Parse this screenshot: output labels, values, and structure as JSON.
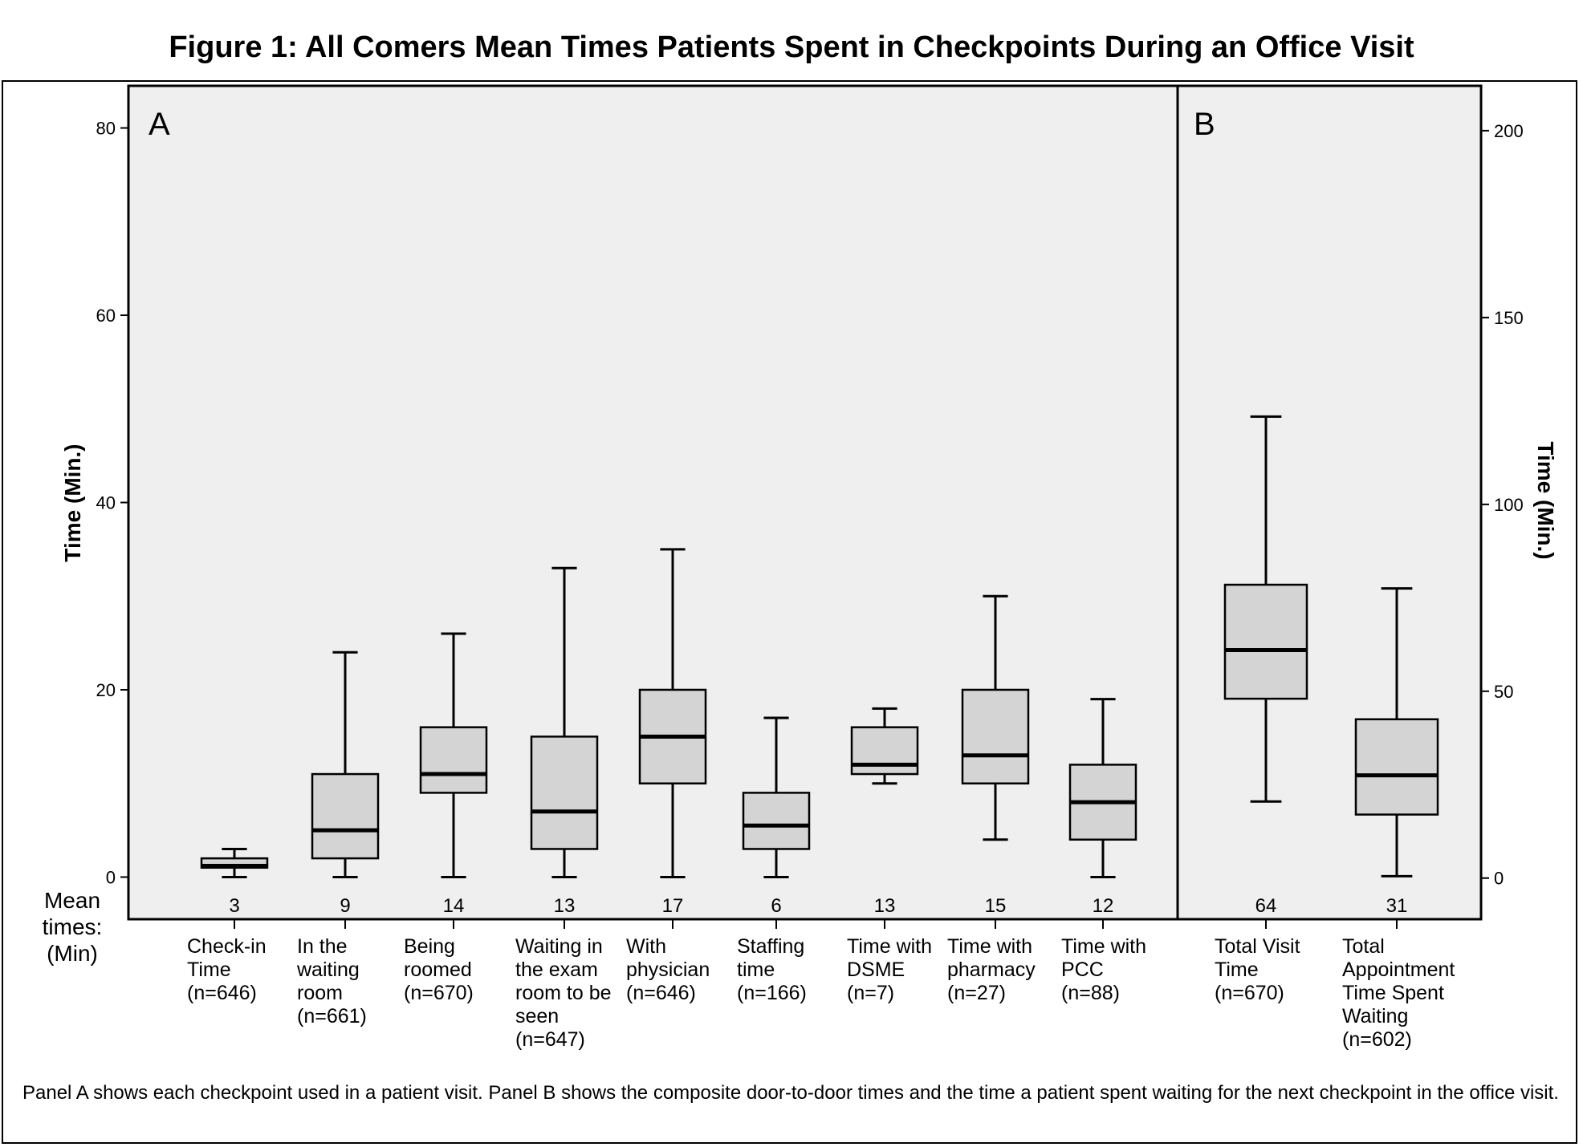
{
  "figure": {
    "title": "Figure 1: All Comers Mean Times Patients Spent in Checkpoints During an Office Visit",
    "caption": "Panel A shows each checkpoint used in a patient visit. Panel B shows the composite door-to-door times and the time a patient spent waiting for the next checkpoint in the office visit."
  },
  "mean_row_label": "Mean times: (Min)",
  "chart_data": [
    {
      "panel": "A",
      "type": "box",
      "ylabel": "Time (Min.)",
      "ylim": [
        -4.5,
        84.5
      ],
      "yticks": [
        0,
        20,
        40,
        60,
        80
      ],
      "grid": false,
      "background": "#efefef",
      "box_color": "#d4d4d4",
      "categories": [
        {
          "label": "Check-in Time",
          "n": "(n=646)",
          "min": 0,
          "q1": 1,
          "median": 1.2,
          "q3": 2,
          "max": 3,
          "mean": 3
        },
        {
          "label": "In the waiting room",
          "n": "(n=661)",
          "min": 0,
          "q1": 2,
          "median": 5,
          "q3": 11,
          "max": 24,
          "mean": 9
        },
        {
          "label": "Being roomed",
          "n": "(n=670)",
          "min": 0,
          "q1": 9,
          "median": 11,
          "q3": 16,
          "max": 26,
          "mean": 14
        },
        {
          "label": "Waiting in the exam room to be seen",
          "n": "(n=647)",
          "min": 0,
          "q1": 3,
          "median": 7,
          "q3": 15,
          "max": 33,
          "mean": 13
        },
        {
          "label": "With physician",
          "n": "(n=646)",
          "min": 0,
          "q1": 10,
          "median": 15,
          "q3": 20,
          "max": 35,
          "mean": 17
        },
        {
          "label": "Staffing time",
          "n": "(n=166)",
          "min": 0,
          "q1": 3,
          "median": 5.5,
          "q3": 9,
          "max": 17,
          "mean": 6
        },
        {
          "label": "Time with DSME",
          "n": "(n=7)",
          "min": 10,
          "q1": 11,
          "median": 12,
          "q3": 16,
          "max": 18,
          "mean": 13
        },
        {
          "label": "Time with pharmacy",
          "n": "(n=27)",
          "min": 4,
          "q1": 10,
          "median": 13,
          "q3": 20,
          "max": 30,
          "mean": 15
        },
        {
          "label": "Time with PCC",
          "n": "(n=88)",
          "min": 0,
          "q1": 4,
          "median": 8,
          "q3": 12,
          "max": 19,
          "mean": 12
        }
      ]
    },
    {
      "panel": "B",
      "type": "box",
      "ylabel": "Time (Min.)",
      "ylim": [
        -11,
        212
      ],
      "yticks": [
        0,
        50,
        100,
        150,
        200
      ],
      "grid": false,
      "background": "#efefef",
      "box_color": "#d4d4d4",
      "categories": [
        {
          "label": "Total Visit Time",
          "n": "(n=670)",
          "min": 20.5,
          "q1": 48,
          "median": 61,
          "q3": 78.5,
          "max": 123.5,
          "mean": 64
        },
        {
          "label": "Total Appointment Time Spent Waiting",
          "n": "(n=602)",
          "min": 0.5,
          "q1": 17,
          "median": 27.5,
          "q3": 42.5,
          "max": 77.5,
          "mean": 31
        }
      ]
    }
  ]
}
